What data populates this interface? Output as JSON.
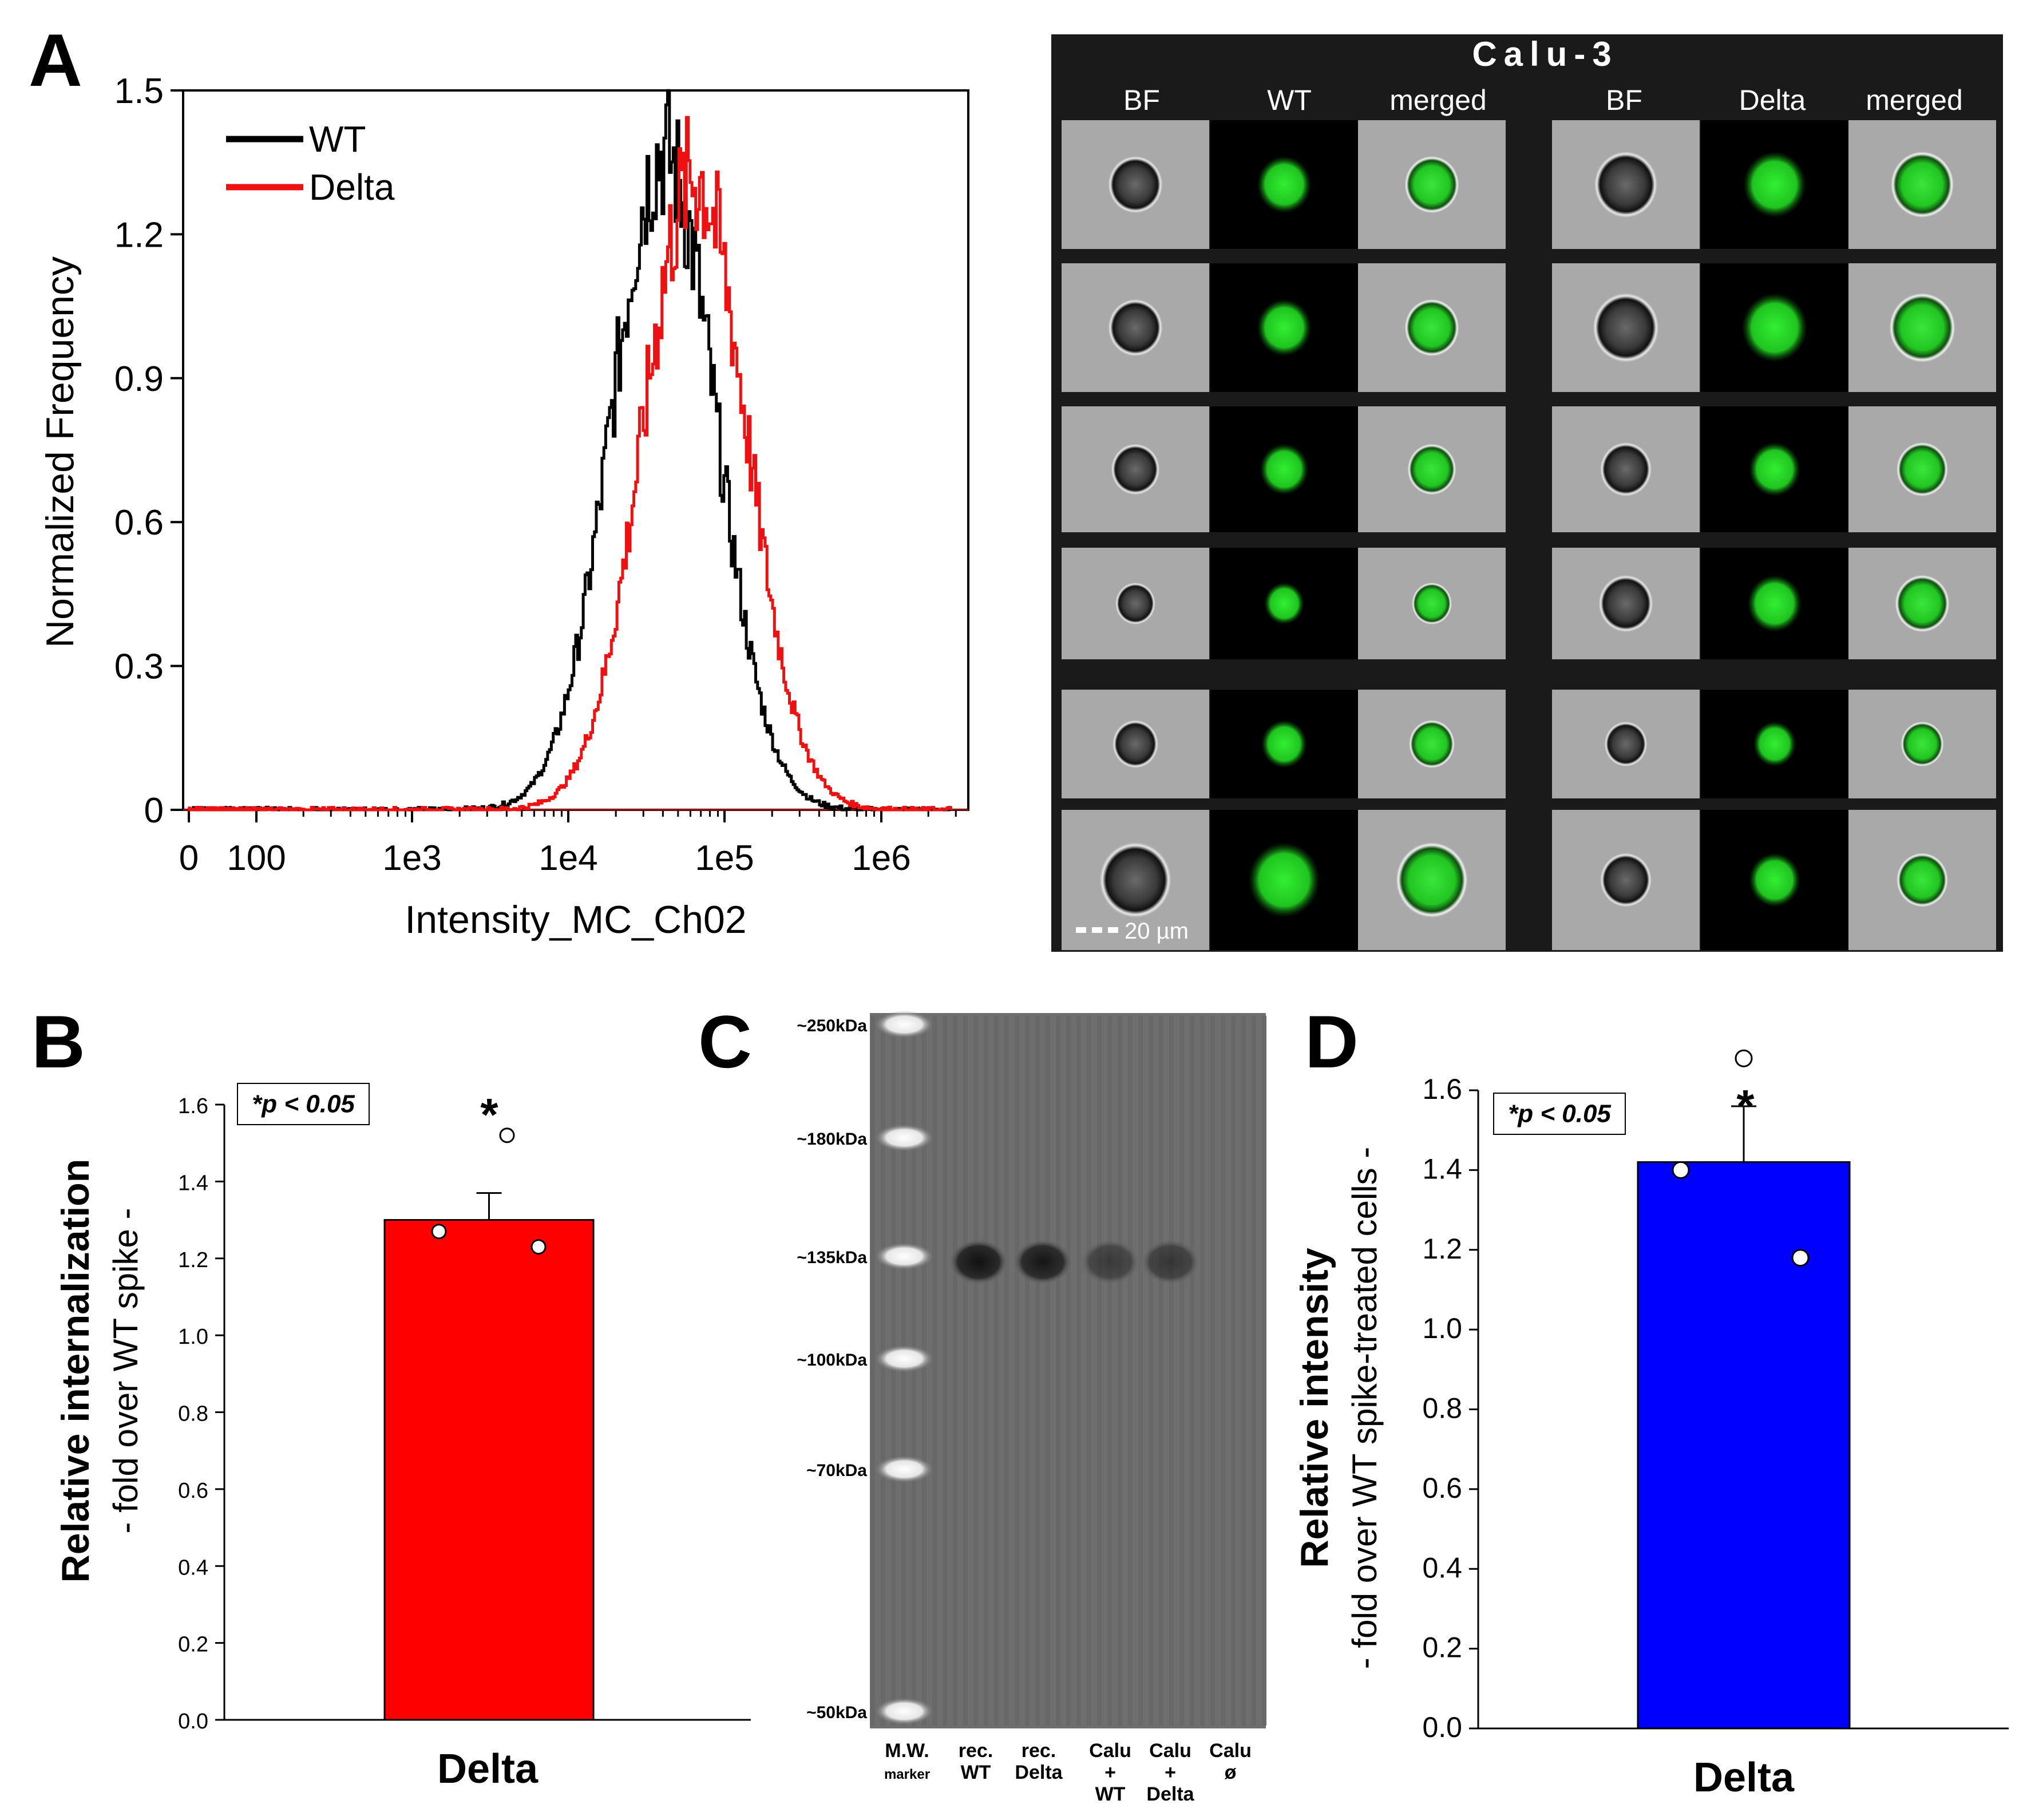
{
  "panel_letters": {
    "a": "A",
    "b": "B",
    "c": "C",
    "d": "D"
  },
  "colors": {
    "wt": "#000000",
    "delta_hist": "#ee1111",
    "bar_b": "#ff0000",
    "bar_d": "#0000ff",
    "micro_bg": "#1a1a1a",
    "cell_green": "#22cc22",
    "bf_gray": "#a9a9a9",
    "blot_bg": "#6e6e6e"
  },
  "chart_data": [
    {
      "id": "A",
      "type": "line",
      "xscale": "log-like (0, 100, 1e3 ... 1e6)",
      "xlabel": "Intensity_MC_Ch02",
      "ylabel": "Normalized Frequency",
      "ylim": [
        0,
        1.5
      ],
      "yticks": [
        0,
        0.3,
        0.6,
        0.9,
        1.2,
        1.5
      ],
      "ytick_labels": [
        "0",
        "0.3",
        "0.6",
        "0.9",
        "1.2",
        "1.5"
      ],
      "xtick_labels": [
        "0",
        "100",
        "1e3",
        "1e4",
        "1e5",
        "1e6"
      ],
      "legend_position": "top-left",
      "series": [
        {
          "name": "WT",
          "color": "#000000",
          "peak_log10": 4.6,
          "peak_y": 1.37,
          "width_log10": 0.33
        },
        {
          "name": "Delta",
          "color": "#ee1111",
          "peak_log10": 4.8,
          "peak_y": 1.32,
          "width_log10": 0.33
        }
      ]
    },
    {
      "id": "B",
      "type": "bar",
      "categories": [
        "Delta"
      ],
      "values": [
        1.3
      ],
      "error": [
        0.07
      ],
      "points": [
        1.27,
        1.52,
        1.23
      ],
      "annotation": "*",
      "stat_label": "*p < 0.05",
      "ylim": [
        0,
        1.6
      ],
      "yticks": [
        "0.0",
        "0.2",
        "0.4",
        "0.6",
        "0.8",
        "1.0",
        "1.2",
        "1.4",
        "1.6"
      ],
      "ylabel": "Relative internalization",
      "ylabel2": "- fold over WT spike -",
      "xlabel": "Delta"
    },
    {
      "id": "D",
      "type": "bar",
      "categories": [
        "Delta"
      ],
      "values": [
        1.42
      ],
      "error": [
        0.14
      ],
      "points": [
        1.4,
        1.68,
        1.18
      ],
      "annotation": "*",
      "stat_label": "*p < 0.05",
      "ylim": [
        0,
        1.6
      ],
      "yticks": [
        "0.0",
        "0.2",
        "0.4",
        "0.6",
        "0.8",
        "1.0",
        "1.2",
        "1.4",
        "1.6"
      ],
      "ylabel": "Relative intensity",
      "ylabel2": "- fold over WT spike-treated cells -",
      "xlabel": "Delta"
    }
  ],
  "micro": {
    "title": "Calu-3",
    "headers_left": [
      "BF",
      "WT",
      "merged"
    ],
    "headers_right": [
      "BF",
      "Delta",
      "merged"
    ],
    "scale_bar": "20 µm"
  },
  "blot": {
    "markers": [
      "~250kDa",
      "~180kDa",
      "~135kDa",
      "~100kDa",
      "~70kDa",
      "~50kDa"
    ],
    "lane_labels": [
      [
        "M.W.",
        "marker"
      ],
      [
        "rec.",
        "WT"
      ],
      [
        "rec.",
        "Delta"
      ],
      [
        "Calu",
        "+",
        "WT"
      ],
      [
        "Calu",
        "+",
        "Delta"
      ],
      [
        "Calu",
        "ø"
      ]
    ]
  }
}
